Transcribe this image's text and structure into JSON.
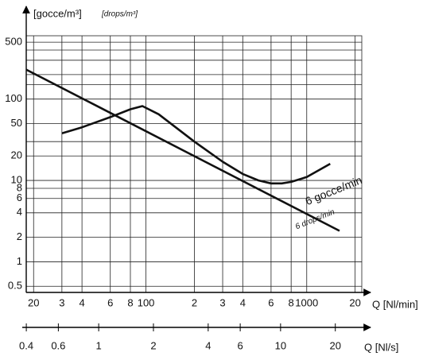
{
  "chart_data": {
    "type": "line",
    "log_x": true,
    "log_y": true,
    "grid": true,
    "ylabel": "[gocce/m³]",
    "ylabel_en": "[drops/m³]",
    "xlabel": "Q [Nl/min]",
    "x2label": "Q [Nl/s]",
    "xlim": [
      18,
      2200
    ],
    "ylim": [
      0.42,
      600
    ],
    "x2lim": [
      0.38,
      30
    ],
    "xticks": [
      20,
      {
        "value": 30,
        "label": "3"
      },
      {
        "value": 40,
        "label": "4"
      },
      {
        "value": 60,
        "label": "6"
      },
      {
        "value": 80,
        "label": "8"
      },
      100,
      {
        "value": 200,
        "label": "2"
      },
      {
        "value": 300,
        "label": "3"
      },
      {
        "value": 400,
        "label": "4"
      },
      {
        "value": 600,
        "label": "6"
      },
      {
        "value": 800,
        "label": "8"
      },
      1000,
      {
        "value": 2000,
        "label": "20"
      }
    ],
    "yticks": [
      0.5,
      1,
      2,
      4,
      6,
      8,
      10,
      20,
      50,
      100,
      500
    ],
    "yminor": [
      30,
      150,
      200,
      300,
      400
    ],
    "x2ticks": [
      0.4,
      0.6,
      1,
      2,
      4,
      6,
      10,
      20
    ],
    "series": [
      {
        "name": "6 gocce/min",
        "name_en": "6 drops/min",
        "color": "#111",
        "x": [
          18,
          1600
        ],
        "values": [
          230,
          2.4
        ]
      },
      {
        "color": "#111",
        "x": [
          30,
          40,
          60,
          80,
          95,
          120,
          200,
          300,
          400,
          500,
          600,
          700,
          800,
          1000,
          1400
        ],
        "values": [
          38,
          45,
          60,
          75,
          82,
          65,
          30,
          17,
          12,
          10,
          9.2,
          9.2,
          9.6,
          11,
          16
        ]
      }
    ]
  }
}
